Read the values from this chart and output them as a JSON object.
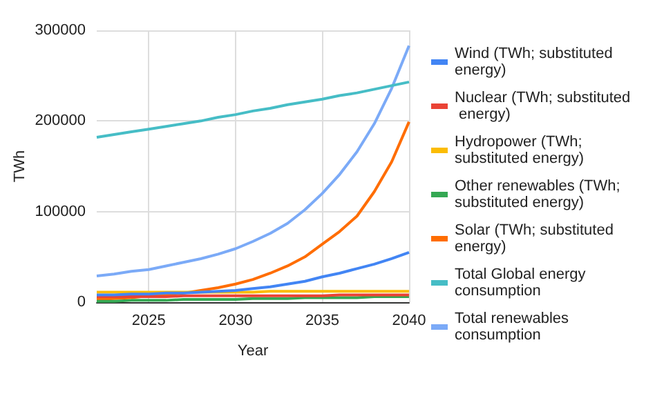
{
  "chart_data": {
    "type": "line",
    "xlabel": "Year",
    "ylabel": "TWh",
    "x": [
      2022,
      2023,
      2024,
      2025,
      2026,
      2027,
      2028,
      2029,
      2030,
      2031,
      2032,
      2033,
      2034,
      2035,
      2036,
      2037,
      2038,
      2039,
      2040
    ],
    "xlim": [
      2022,
      2040
    ],
    "xticks": [
      2025,
      2030,
      2035,
      2040
    ],
    "ylim": [
      0,
      300000
    ],
    "yticks": [
      0,
      100000,
      200000,
      300000
    ],
    "grid": true,
    "legend": "right",
    "marker": "none",
    "line_style": "solid",
    "series": [
      {
        "name": "Wind (TWh; substituted energy)",
        "color": "#4285f4",
        "values": [
          8000,
          8000,
          9000,
          9000,
          10000,
          10000,
          11000,
          12000,
          13000,
          15000,
          17000,
          20000,
          23000,
          28000,
          32000,
          37000,
          42000,
          48000,
          55000
        ]
      },
      {
        "name": "Nuclear (TWh; substituted energy)",
        "color": "#ea4335",
        "values": [
          6000,
          6000,
          6000,
          6000,
          6000,
          7000,
          7000,
          7000,
          7000,
          7000,
          7000,
          7000,
          7000,
          7000,
          8000,
          8000,
          8000,
          8000,
          8000
        ]
      },
      {
        "name": "Hydropower (TWh; substituted energy)",
        "color": "#fbbc04",
        "values": [
          11000,
          11000,
          11000,
          11000,
          11000,
          11000,
          11000,
          11000,
          11000,
          11000,
          12000,
          12000,
          12000,
          12000,
          12000,
          12000,
          12000,
          12000,
          12000
        ]
      },
      {
        "name": "Other renewables (TWh; substituted energy)",
        "color": "#34a853",
        "values": [
          1000,
          1000,
          2000,
          2000,
          2000,
          3000,
          3000,
          3000,
          3000,
          4000,
          4000,
          4000,
          5000,
          5000,
          5000,
          5000,
          6000,
          6000,
          6000
        ]
      },
      {
        "name": "Solar (TWh; substituted energy)",
        "color": "#ff6d01",
        "values": [
          3000,
          4000,
          5000,
          7000,
          8000,
          10000,
          13000,
          16000,
          20000,
          25000,
          32000,
          40000,
          50000,
          64000,
          78000,
          95000,
          122000,
          155000,
          199000
        ]
      },
      {
        "name": "Total Global energy consumption",
        "color": "#46bdc6",
        "values": [
          182000,
          185000,
          188000,
          191000,
          194000,
          197000,
          200000,
          204000,
          207000,
          211000,
          214000,
          218000,
          221000,
          224000,
          228000,
          231000,
          235000,
          239000,
          243000
        ]
      },
      {
        "name": "Total renewables consumption",
        "color": "#7baaf7",
        "values": [
          29000,
          31000,
          34000,
          36000,
          40000,
          44000,
          48000,
          53000,
          59000,
          67000,
          76000,
          87000,
          102000,
          120000,
          141000,
          166000,
          197000,
          236000,
          283000
        ]
      }
    ]
  }
}
